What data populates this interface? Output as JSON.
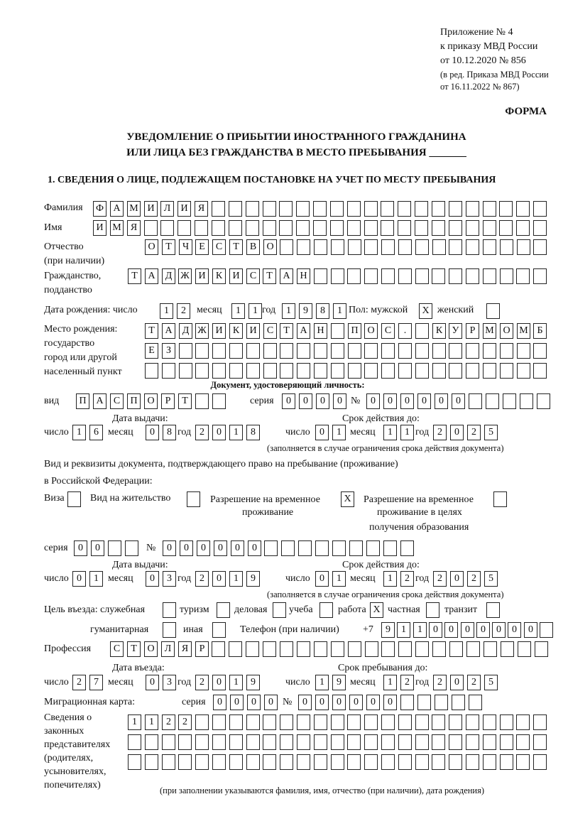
{
  "header": {
    "appendix": "Приложение № 4",
    "order": "к приказу МВД России",
    "order_date": "от 10.12.2020 № 856",
    "edition": "(в ред. Приказа МВД России",
    "edition_date": "от 16.11.2022 № 867)",
    "forma": "ФОРМА"
  },
  "title": {
    "line1": "УВЕДОМЛЕНИЕ О ПРИБЫТИИ ИНОСТРАННОГО ГРАЖДАНИНА",
    "line2": "ИЛИ ЛИЦА БЕЗ ГРАЖДАНСТВА В МЕСТО ПРЕБЫВАНИЯ _______"
  },
  "section1": {
    "heading": "1. СВЕДЕНИЯ О ЛИЦЕ, ПОДЛЕЖАЩЕМ ПОСТАНОВКЕ НА УЧЕТ ПО МЕСТУ ПРЕБЫВАНИЯ"
  },
  "labels": {
    "surname": "Фамилия",
    "name": "Имя",
    "patronymic": "Отчество",
    "patronymic_note": "(при наличии)",
    "citizenship": "Гражданство,",
    "citizenship2": "подданство",
    "birth_date": "Дата рождения:  число",
    "month": "месяц",
    "year": "год",
    "day": "число",
    "sex_male": "Пол: мужской",
    "sex_female": "женский",
    "birthplace1": "Место рождения:",
    "birthplace2": "государство",
    "birthplace3": "город или другой",
    "birthplace4": "населенный пункт",
    "id_doc": "Документ, удостоверяющий личность:",
    "kind": "вид",
    "series": "серия",
    "number": "№",
    "issue_date": "Дата выдачи:",
    "valid_until": "Срок действия до:",
    "validity_note": "(заполняется в случае ограничения срока действия документа)",
    "residence_doc1": "Вид и реквизиты документа, подтверждающего право на пребывание (проживание)",
    "residence_doc2": "в Российской Федерации:",
    "visa": "Виза",
    "residence_permit": "Вид на жительство",
    "temp_permit1": "Разрешение на временное",
    "temp_permit2": "проживание",
    "edu_permit1": "Разрешение на временное",
    "edu_permit2": "проживание в целях",
    "edu_permit3": "получения образования",
    "purpose": "Цель въезда: служебная",
    "tourism": "туризм",
    "business": "деловая",
    "study": "учеба",
    "work": "работа",
    "private": "частная",
    "transit": "транзит",
    "humanitarian": "гуманитарная",
    "other": "иная",
    "phone": "Телефон (при наличии)",
    "phone_prefix": "+7",
    "profession": "Профессия",
    "entry_date": "Дата въезда:",
    "stay_until": "Срок пребывания до:",
    "migration_card": "Миграционная карта:",
    "reps1": "Сведения о",
    "reps2": "законных",
    "reps3": "представителях",
    "reps4": "(родителях,",
    "reps5": "усыновителях,",
    "reps6": "попечителях)",
    "reps_note": "(при заполнении указываются фамилия, имя, отчество (при наличии), дата рождения)"
  },
  "person": {
    "surname": "ФАМИЛИЯ",
    "name": "ИМЯ",
    "patronymic": "ОТЧЕСТВО",
    "citizenship": "ТАДЖИКИСТАН",
    "birth_day": "12",
    "birth_month": "11",
    "birth_year": "1981",
    "sex_male": "X",
    "sex_female": "",
    "birthplace": [
      "ТАДЖИКИСТАН ПОС. КУРМОМБ",
      "ЕЗ",
      ""
    ]
  },
  "id_document": {
    "kind": "ПАСПОРТ",
    "series": "0000",
    "number": "000000",
    "issue_day": "16",
    "issue_month": "08",
    "issue_year": "2018",
    "valid_day": "01",
    "valid_month": "11",
    "valid_year": "2025"
  },
  "residence_document": {
    "visa": "",
    "residence_permit": "",
    "temp_permit": "X",
    "edu_permit": "",
    "series": "00",
    "number": "000000",
    "issue_day": "01",
    "issue_month": "03",
    "issue_year": "2019",
    "valid_day": "01",
    "valid_month": "12",
    "valid_year": "2025"
  },
  "purpose": {
    "official": "",
    "tourism": "",
    "business": "",
    "study": "",
    "work": "X",
    "private": "",
    "transit": "",
    "humanitarian": "",
    "other": ""
  },
  "phone": "9110000000",
  "profession": "СТОЛЯР",
  "entry": {
    "entry_day": "27",
    "entry_month": "03",
    "entry_year": "2019",
    "stay_day": "19",
    "stay_month": "12",
    "stay_year": "2025"
  },
  "migration_card": {
    "series": "0000",
    "number": "000000"
  },
  "representatives": [
    "1122",
    "",
    ""
  ]
}
